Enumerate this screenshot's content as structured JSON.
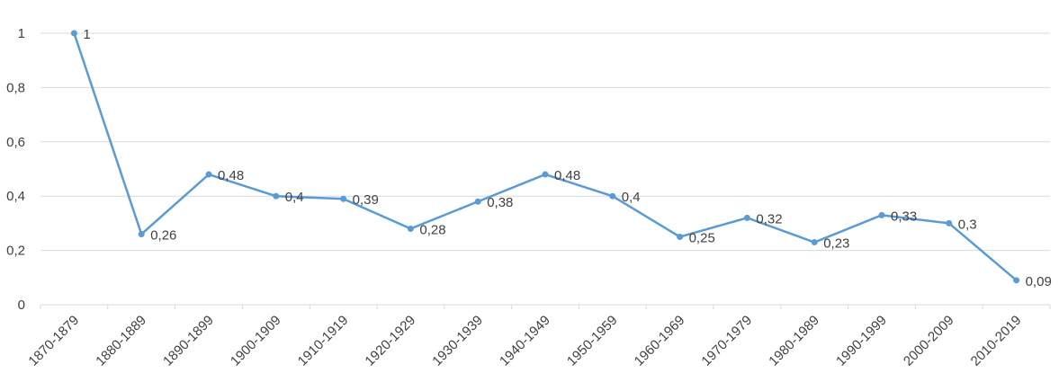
{
  "chart_data": {
    "type": "line",
    "title": "",
    "xlabel": "",
    "ylabel": "",
    "ylim": [
      0,
      1
    ],
    "yticks": [
      0,
      0.2,
      0.4,
      0.6,
      0.8,
      1
    ],
    "ytick_labels": [
      "0",
      "0,2",
      "0,4",
      "0,6",
      "0,8",
      "1"
    ],
    "grid": true,
    "legend": "none",
    "categories": [
      "1870-1879",
      "1880-1889",
      "1890-1899",
      "1900-1909",
      "1910-1919",
      "1920-1929",
      "1930-1939",
      "1940-1949",
      "1950-1959",
      "1960-1969",
      "1970-1979",
      "1980-1989",
      "1990-1999",
      "2000-2009",
      "2010-2019"
    ],
    "series": [
      {
        "values": [
          1,
          0.26,
          0.48,
          0.4,
          0.39,
          0.28,
          0.38,
          0.48,
          0.4,
          0.25,
          0.32,
          0.23,
          0.33,
          0.3,
          0.09
        ],
        "data_labels": [
          "1",
          "0,26",
          "0,48",
          "0,4",
          "0,39",
          "0,28",
          "0,38",
          "0,48",
          "0,4",
          "0,25",
          "0,32",
          "0,23",
          "0,33",
          "0,3",
          "0,09"
        ],
        "color": "#5b9bd5"
      }
    ]
  }
}
